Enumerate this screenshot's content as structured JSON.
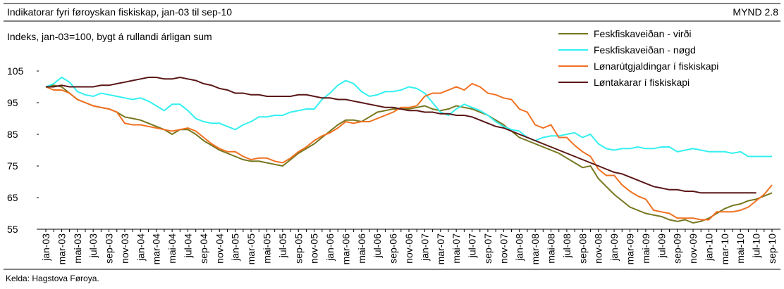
{
  "chart_data": {
    "type": "line",
    "title": "Indikatorar fyri føroyskan fiskiskap, jan-03 til sep-10",
    "figure_label": "MYND 2.8",
    "y_label": "Indeks, jan-03=100, bygt á rullandi árligan sum",
    "source": "Kelda: Hagstova Føroya.",
    "legend": "upper right",
    "grid": false,
    "ylim": [
      55,
      105
    ],
    "yticks": [
      55,
      65,
      75,
      85,
      95,
      105
    ],
    "categories": [
      "jan-03",
      null,
      "mar-03",
      null,
      "mai-03",
      null,
      "jul-03",
      null,
      "sep-03",
      null,
      "nov-03",
      null,
      "jan-04",
      null,
      "mar-04",
      null,
      "mai-04",
      null,
      "jul-04",
      null,
      "sep-04",
      null,
      "nov-04",
      null,
      "jan-05",
      null,
      "mar-05",
      null,
      "mai-05",
      null,
      "jul-05",
      null,
      "sep-05",
      null,
      "nov-05",
      null,
      "jan-06",
      null,
      "mar-06",
      null,
      "mai-06",
      null,
      "jul-06",
      null,
      "sep-06",
      null,
      "nov-06",
      null,
      "jan-07",
      null,
      "mar-07",
      null,
      "mai-07",
      null,
      "jul-07",
      null,
      "sep-07",
      null,
      "nov-07",
      null,
      "jan-08",
      null,
      "mar-08",
      null,
      "mai-08",
      null,
      "jul-08",
      null,
      "sep-08",
      null,
      "nov-08",
      null,
      "jan-09",
      null,
      "mar-09",
      null,
      "mai-09",
      null,
      "jul-09",
      null,
      "sep-09",
      null,
      "nov-09",
      null,
      "jan-10",
      null,
      "mar-10",
      null,
      "mai-10",
      null,
      "jul-10",
      null,
      "sep-10"
    ],
    "series": [
      {
        "name": "Feskfiskaveiðan - virði",
        "color": "#76761e",
        "values": [
          100,
          100.5,
          100,
          98,
          96,
          95,
          94,
          93.5,
          93,
          92,
          90.5,
          90,
          89.5,
          88.5,
          87.5,
          86.5,
          85,
          86.5,
          86.5,
          85,
          83,
          81.5,
          80,
          79,
          78,
          77,
          76.5,
          76.5,
          76,
          75.5,
          75,
          77,
          79,
          80.5,
          82,
          84,
          86,
          88,
          89.5,
          89.5,
          89,
          90.5,
          92,
          92.5,
          93,
          93,
          93,
          93.5,
          94,
          93,
          92.5,
          93,
          94,
          93.5,
          93,
          92,
          91,
          89.5,
          88,
          86,
          84,
          83,
          82,
          81,
          80,
          79,
          77.5,
          76,
          74.5,
          75,
          71,
          68.5,
          66,
          64,
          62,
          61,
          60,
          59.5,
          59,
          58,
          57.5,
          58,
          57,
          57.5,
          58.5,
          60,
          61.5,
          62.5,
          63,
          64,
          64.5,
          65.5,
          66.5
        ]
      },
      {
        "name": "Feskfiskaveiðan - nøgd",
        "color": "#33f0f0",
        "values": [
          100,
          101,
          103,
          101.5,
          98.5,
          97.5,
          97,
          98,
          97.5,
          97,
          96.5,
          96,
          96.5,
          95.5,
          94,
          92.5,
          94.5,
          94.5,
          92.5,
          90,
          89,
          88.5,
          88.5,
          87.5,
          86.5,
          88,
          89,
          90.5,
          90.5,
          91,
          91,
          92,
          92.5,
          93,
          93,
          96,
          98,
          100.5,
          102,
          101,
          98.5,
          97,
          97.5,
          98.5,
          98.5,
          99,
          100,
          99.5,
          98,
          95,
          92,
          91,
          93,
          94.5,
          93.5,
          92.5,
          91,
          89,
          87.5,
          86.5,
          86,
          84,
          83,
          84,
          84.5,
          84.5,
          85,
          85.5,
          84,
          85,
          82,
          80.5,
          80,
          80.5,
          80.5,
          81,
          80.5,
          80.5,
          81,
          81,
          79.5,
          80,
          80.5,
          80,
          79.5,
          79.5,
          79.5,
          79,
          79.5,
          78,
          78,
          78,
          78
        ]
      },
      {
        "name": "Lønarútgjaldingar í fiskiskapi",
        "color": "#f07020",
        "values": [
          100,
          99,
          99,
          98,
          96,
          95,
          94,
          93.5,
          93,
          92,
          88.5,
          88,
          88,
          87.5,
          87,
          86.5,
          86,
          86.5,
          87,
          86,
          84,
          82,
          80.5,
          79.5,
          79.5,
          78,
          77,
          77.5,
          77.5,
          76.5,
          76,
          77.5,
          79.5,
          81,
          83,
          84.5,
          85.5,
          87,
          89,
          88.5,
          89,
          89,
          90,
          91,
          92,
          93.5,
          93.5,
          94,
          97,
          98,
          98,
          99,
          100,
          99,
          101,
          100,
          98,
          97.5,
          96.5,
          96,
          93,
          92,
          88,
          87,
          88,
          84,
          84,
          81.5,
          79.5,
          78,
          74,
          72,
          72,
          69,
          67,
          65.5,
          64.5,
          61,
          60.5,
          60,
          58.5,
          58.5,
          58.5,
          58,
          58,
          60.5,
          60.5,
          60.5,
          61,
          62,
          64,
          66,
          69
        ]
      },
      {
        "name": "Løntakarar í fiskiskapi",
        "color": "#5a1616",
        "values": [
          100,
          100,
          100.5,
          100,
          100,
          100,
          100,
          100.5,
          100.5,
          101,
          101.5,
          102,
          102.5,
          103,
          103,
          102.5,
          102.5,
          103,
          102.5,
          102,
          101,
          100.5,
          99.5,
          99,
          98,
          98,
          97.5,
          97.5,
          97,
          97,
          97,
          97,
          97.5,
          97.5,
          97,
          96.5,
          96.5,
          96,
          96,
          95.5,
          95,
          94.5,
          94,
          93.5,
          93.5,
          93,
          92.5,
          92.5,
          92,
          92,
          91.5,
          91.5,
          91,
          91,
          90.5,
          89.5,
          88.5,
          87.5,
          87,
          86,
          85,
          84,
          83,
          82,
          81,
          80,
          79,
          78,
          77,
          76,
          75,
          74,
          73,
          72.5,
          71.5,
          70.5,
          69.5,
          68.5,
          68,
          67.5,
          67.5,
          67,
          67,
          66.5,
          66.5,
          66.5,
          66.5,
          66.5,
          66.5,
          66.5,
          66.5,
          null,
          null
        ]
      }
    ]
  }
}
